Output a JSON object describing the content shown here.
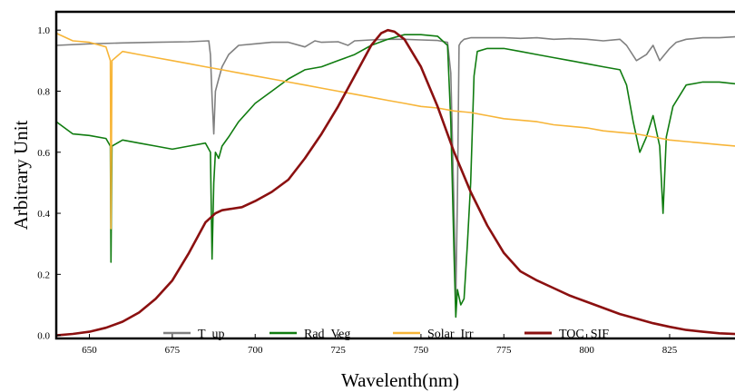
{
  "chart_data": {
    "type": "line",
    "title": "",
    "xlabel": "Wavelenth(nm)",
    "ylabel": "Arbitrary Unit",
    "xlim": [
      640,
      848
    ],
    "ylim": [
      -0.01,
      1.06
    ],
    "x_ticks": [
      650,
      675,
      700,
      725,
      750,
      775,
      800,
      825
    ],
    "y_ticks": [
      0.0,
      0.2,
      0.4,
      0.6,
      0.8,
      1.0
    ],
    "x_tick_labels": [
      "650",
      "675",
      "700",
      "725",
      "750",
      "775",
      "800",
      "825"
    ],
    "y_tick_labels": [
      "0.0",
      "0.2",
      "0.4",
      "0.6",
      "0.8",
      "1.0"
    ],
    "grid": false,
    "legend_position": "bottom-center",
    "series": [
      {
        "name": "T_up",
        "color": "#808080",
        "points": [
          [
            640,
            0.95
          ],
          [
            650,
            0.955
          ],
          [
            660,
            0.958
          ],
          [
            670,
            0.96
          ],
          [
            680,
            0.962
          ],
          [
            686,
            0.965
          ],
          [
            686.5,
            0.92
          ],
          [
            687,
            0.78
          ],
          [
            687.5,
            0.66
          ],
          [
            688,
            0.8
          ],
          [
            689,
            0.84
          ],
          [
            690,
            0.88
          ],
          [
            692,
            0.92
          ],
          [
            695,
            0.95
          ],
          [
            700,
            0.955
          ],
          [
            705,
            0.96
          ],
          [
            710,
            0.96
          ],
          [
            715,
            0.945
          ],
          [
            718,
            0.965
          ],
          [
            720,
            0.96
          ],
          [
            725,
            0.962
          ],
          [
            728,
            0.95
          ],
          [
            730,
            0.965
          ],
          [
            735,
            0.968
          ],
          [
            740,
            0.97
          ],
          [
            745,
            0.97
          ],
          [
            750,
            0.968
          ],
          [
            755,
            0.966
          ],
          [
            758,
            0.96
          ],
          [
            759,
            0.86
          ],
          [
            760,
            0.4
          ],
          [
            760.5,
            0.12
          ],
          [
            761,
            0.45
          ],
          [
            761.5,
            0.95
          ],
          [
            762,
            0.96
          ],
          [
            763,
            0.97
          ],
          [
            765,
            0.975
          ],
          [
            770,
            0.975
          ],
          [
            775,
            0.975
          ],
          [
            780,
            0.973
          ],
          [
            785,
            0.975
          ],
          [
            790,
            0.97
          ],
          [
            795,
            0.972
          ],
          [
            800,
            0.97
          ],
          [
            805,
            0.965
          ],
          [
            810,
            0.97
          ],
          [
            812,
            0.95
          ],
          [
            815,
            0.9
          ],
          [
            818,
            0.92
          ],
          [
            820,
            0.95
          ],
          [
            822,
            0.9
          ],
          [
            825,
            0.94
          ],
          [
            827,
            0.96
          ],
          [
            830,
            0.97
          ],
          [
            835,
            0.975
          ],
          [
            840,
            0.975
          ],
          [
            848,
            0.98
          ]
        ]
      },
      {
        "name": "Rad_Veg",
        "color": "#107c10",
        "points": [
          [
            640,
            0.7
          ],
          [
            645,
            0.66
          ],
          [
            650,
            0.655
          ],
          [
            655,
            0.645
          ],
          [
            656.3,
            0.62
          ],
          [
            656.5,
            0.24
          ],
          [
            656.8,
            0.62
          ],
          [
            660,
            0.64
          ],
          [
            665,
            0.63
          ],
          [
            670,
            0.62
          ],
          [
            675,
            0.61
          ],
          [
            680,
            0.62
          ],
          [
            685,
            0.63
          ],
          [
            686.5,
            0.6
          ],
          [
            687,
            0.25
          ],
          [
            687.5,
            0.5
          ],
          [
            688,
            0.6
          ],
          [
            689,
            0.58
          ],
          [
            690,
            0.62
          ],
          [
            692,
            0.65
          ],
          [
            695,
            0.7
          ],
          [
            700,
            0.76
          ],
          [
            705,
            0.8
          ],
          [
            710,
            0.84
          ],
          [
            715,
            0.87
          ],
          [
            720,
            0.88
          ],
          [
            725,
            0.9
          ],
          [
            730,
            0.92
          ],
          [
            735,
            0.95
          ],
          [
            740,
            0.97
          ],
          [
            745,
            0.985
          ],
          [
            750,
            0.985
          ],
          [
            755,
            0.98
          ],
          [
            758,
            0.95
          ],
          [
            759,
            0.7
          ],
          [
            760,
            0.25
          ],
          [
            760.5,
            0.06
          ],
          [
            761,
            0.15
          ],
          [
            762,
            0.1
          ],
          [
            763,
            0.12
          ],
          [
            764,
            0.3
          ],
          [
            765,
            0.5
          ],
          [
            766,
            0.85
          ],
          [
            767,
            0.93
          ],
          [
            770,
            0.94
          ],
          [
            775,
            0.94
          ],
          [
            780,
            0.93
          ],
          [
            785,
            0.92
          ],
          [
            790,
            0.91
          ],
          [
            795,
            0.9
          ],
          [
            800,
            0.89
          ],
          [
            805,
            0.88
          ],
          [
            810,
            0.87
          ],
          [
            812,
            0.82
          ],
          [
            814,
            0.7
          ],
          [
            816,
            0.6
          ],
          [
            818,
            0.65
          ],
          [
            820,
            0.72
          ],
          [
            822,
            0.62
          ],
          [
            823,
            0.4
          ],
          [
            824,
            0.65
          ],
          [
            826,
            0.75
          ],
          [
            830,
            0.82
          ],
          [
            835,
            0.83
          ],
          [
            840,
            0.83
          ],
          [
            848,
            0.82
          ]
        ]
      },
      {
        "name": "Solar_Irr",
        "color": "#f7b538",
        "points": [
          [
            640,
            0.99
          ],
          [
            645,
            0.965
          ],
          [
            650,
            0.96
          ],
          [
            655,
            0.945
          ],
          [
            656.3,
            0.9
          ],
          [
            656.5,
            0.35
          ],
          [
            656.8,
            0.9
          ],
          [
            660,
            0.93
          ],
          [
            665,
            0.92
          ],
          [
            670,
            0.91
          ],
          [
            675,
            0.9
          ],
          [
            680,
            0.89
          ],
          [
            685,
            0.88
          ],
          [
            690,
            0.87
          ],
          [
            695,
            0.86
          ],
          [
            700,
            0.85
          ],
          [
            705,
            0.84
          ],
          [
            710,
            0.83
          ],
          [
            715,
            0.82
          ],
          [
            720,
            0.81
          ],
          [
            725,
            0.8
          ],
          [
            730,
            0.79
          ],
          [
            735,
            0.78
          ],
          [
            740,
            0.77
          ],
          [
            745,
            0.76
          ],
          [
            750,
            0.75
          ],
          [
            755,
            0.745
          ],
          [
            760,
            0.735
          ],
          [
            765,
            0.73
          ],
          [
            770,
            0.72
          ],
          [
            775,
            0.71
          ],
          [
            780,
            0.705
          ],
          [
            785,
            0.7
          ],
          [
            790,
            0.69
          ],
          [
            795,
            0.685
          ],
          [
            800,
            0.68
          ],
          [
            805,
            0.67
          ],
          [
            810,
            0.665
          ],
          [
            815,
            0.66
          ],
          [
            820,
            0.65
          ],
          [
            825,
            0.64
          ],
          [
            830,
            0.635
          ],
          [
            835,
            0.63
          ],
          [
            840,
            0.625
          ],
          [
            845,
            0.62
          ],
          [
            848,
            0.615
          ]
        ]
      },
      {
        "name": "TOC_SIF",
        "color": "#8b1010",
        "points": [
          [
            640,
            0.0
          ],
          [
            645,
            0.005
          ],
          [
            650,
            0.012
          ],
          [
            655,
            0.025
          ],
          [
            660,
            0.045
          ],
          [
            665,
            0.075
          ],
          [
            670,
            0.12
          ],
          [
            675,
            0.18
          ],
          [
            680,
            0.27
          ],
          [
            683,
            0.33
          ],
          [
            685,
            0.37
          ],
          [
            688,
            0.4
          ],
          [
            690,
            0.41
          ],
          [
            693,
            0.415
          ],
          [
            696,
            0.42
          ],
          [
            700,
            0.44
          ],
          [
            705,
            0.47
          ],
          [
            710,
            0.51
          ],
          [
            715,
            0.58
          ],
          [
            720,
            0.66
          ],
          [
            725,
            0.75
          ],
          [
            730,
            0.85
          ],
          [
            735,
            0.95
          ],
          [
            738,
            0.99
          ],
          [
            740,
            1.0
          ],
          [
            742,
            0.995
          ],
          [
            745,
            0.97
          ],
          [
            750,
            0.88
          ],
          [
            755,
            0.75
          ],
          [
            760,
            0.6
          ],
          [
            765,
            0.47
          ],
          [
            770,
            0.36
          ],
          [
            775,
            0.27
          ],
          [
            780,
            0.21
          ],
          [
            785,
            0.18
          ],
          [
            790,
            0.155
          ],
          [
            795,
            0.13
          ],
          [
            800,
            0.11
          ],
          [
            805,
            0.09
          ],
          [
            810,
            0.07
          ],
          [
            815,
            0.055
          ],
          [
            820,
            0.04
          ],
          [
            825,
            0.028
          ],
          [
            830,
            0.018
          ],
          [
            835,
            0.012
          ],
          [
            840,
            0.007
          ],
          [
            848,
            0.003
          ]
        ]
      }
    ]
  }
}
